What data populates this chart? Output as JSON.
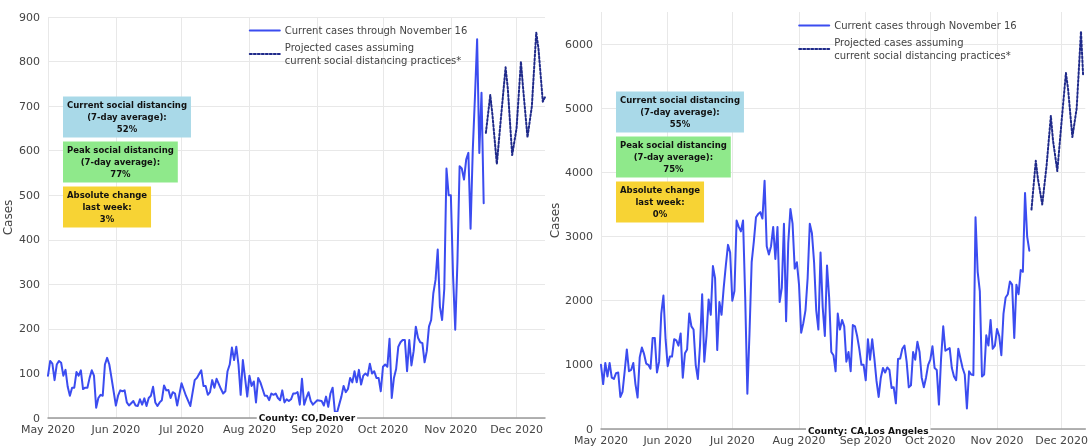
{
  "chart_data": [
    {
      "type": "line",
      "ylabel": "Cases",
      "xlim": [
        "2020-05-01",
        "2020-12-14"
      ],
      "ylim": [
        0,
        900
      ],
      "yticks": [
        0,
        100,
        200,
        300,
        400,
        500,
        600,
        700,
        800,
        900
      ],
      "xticks": [
        {
          "value": "2020-05-01",
          "label": "May 2020"
        },
        {
          "value": "2020-06-01",
          "label": "Jun 2020"
        },
        {
          "value": "2020-07-01",
          "label": "Jul 2020"
        },
        {
          "value": "2020-08-01",
          "label": "Aug 2020"
        },
        {
          "value": "2020-09-01",
          "label": "Sep 2020"
        },
        {
          "value": "2020-10-01",
          "label": "Oct 2020"
        },
        {
          "value": "2020-11-01",
          "label": "Nov 2020"
        },
        {
          "value": "2020-12-01",
          "label": "Dec 2020"
        }
      ],
      "grid": true,
      "legend": "top right",
      "annotations": [
        "Current social distancing\n(7-day average):\n52%",
        "Peak social distancing\n(7-day average):\n77%",
        "Absolute change\nlast week:\n3%",
        "County: CO,Denver"
      ],
      "series": [
        {
          "name": "Current cases through November 16",
          "color": "#3b4cf0",
          "line_style": "solid",
          "x": [
            "2020-05-01",
            "2020-05-02",
            "2020-05-03",
            "2020-05-04",
            "2020-05-05",
            "2020-05-06",
            "2020-05-07",
            "2020-05-08",
            "2020-05-09",
            "2020-05-10",
            "2020-05-11",
            "2020-05-12",
            "2020-05-13",
            "2020-05-14",
            "2020-05-15",
            "2020-05-16",
            "2020-05-17",
            "2020-05-18",
            "2020-05-19",
            "2020-05-20",
            "2020-05-21",
            "2020-05-22",
            "2020-05-23",
            "2020-05-24",
            "2020-05-25",
            "2020-05-26",
            "2020-05-27",
            "2020-05-28",
            "2020-05-29",
            "2020-05-30",
            "2020-06-01",
            "2020-06-02",
            "2020-06-03",
            "2020-06-04",
            "2020-06-05",
            "2020-06-06",
            "2020-06-07",
            "2020-06-08",
            "2020-06-09",
            "2020-06-10",
            "2020-06-11",
            "2020-06-12",
            "2020-06-13",
            "2020-06-14",
            "2020-06-15",
            "2020-06-16",
            "2020-06-17",
            "2020-06-18",
            "2020-06-19",
            "2020-06-20",
            "2020-06-21",
            "2020-06-22",
            "2020-06-23",
            "2020-06-24",
            "2020-06-25",
            "2020-06-26",
            "2020-06-27",
            "2020-06-28",
            "2020-06-29",
            "2020-07-01",
            "2020-07-03",
            "2020-07-05",
            "2020-07-07",
            "2020-07-08",
            "2020-07-10",
            "2020-07-11",
            "2020-07-12",
            "2020-07-13",
            "2020-07-14",
            "2020-07-15",
            "2020-07-16",
            "2020-07-17",
            "2020-07-19",
            "2020-07-20",
            "2020-07-21",
            "2020-07-22",
            "2020-07-23",
            "2020-07-24",
            "2020-07-25",
            "2020-07-26",
            "2020-07-27",
            "2020-07-28",
            "2020-07-29",
            "2020-07-30",
            "2020-07-31",
            "2020-08-01",
            "2020-08-02",
            "2020-08-03",
            "2020-08-04",
            "2020-08-05",
            "2020-08-06",
            "2020-08-07",
            "2020-08-08",
            "2020-08-09",
            "2020-08-10",
            "2020-08-11",
            "2020-08-12",
            "2020-08-13",
            "2020-08-14",
            "2020-08-15",
            "2020-08-16",
            "2020-08-17",
            "2020-08-18",
            "2020-08-19",
            "2020-08-20",
            "2020-08-21",
            "2020-08-22",
            "2020-08-23",
            "2020-08-24",
            "2020-08-25",
            "2020-08-26",
            "2020-08-27",
            "2020-08-28",
            "2020-08-29",
            "2020-08-30",
            "2020-09-01",
            "2020-09-03",
            "2020-09-04",
            "2020-09-05",
            "2020-09-06",
            "2020-09-07",
            "2020-09-08",
            "2020-09-09",
            "2020-09-10",
            "2020-09-11",
            "2020-09-12",
            "2020-09-13",
            "2020-09-14",
            "2020-09-15",
            "2020-09-16",
            "2020-09-17",
            "2020-09-18",
            "2020-09-19",
            "2020-09-20",
            "2020-09-21",
            "2020-09-22",
            "2020-09-23",
            "2020-09-24",
            "2020-09-25",
            "2020-09-26",
            "2020-09-27",
            "2020-09-28",
            "2020-09-29",
            "2020-09-30",
            "2020-10-01",
            "2020-10-02",
            "2020-10-03",
            "2020-10-04",
            "2020-10-05",
            "2020-10-06",
            "2020-10-07",
            "2020-10-08",
            "2020-10-09",
            "2020-10-10",
            "2020-10-11",
            "2020-10-12",
            "2020-10-13",
            "2020-10-14",
            "2020-10-15",
            "2020-10-16",
            "2020-10-17",
            "2020-10-18",
            "2020-10-19",
            "2020-10-20",
            "2020-10-21",
            "2020-10-22",
            "2020-10-23",
            "2020-10-24",
            "2020-10-25",
            "2020-10-26",
            "2020-10-27",
            "2020-10-28",
            "2020-10-29",
            "2020-10-30",
            "2020-10-31",
            "2020-11-01",
            "2020-11-02",
            "2020-11-03",
            "2020-11-04",
            "2020-11-05",
            "2020-11-06",
            "2020-11-07",
            "2020-11-08",
            "2020-11-09",
            "2020-11-10",
            "2020-11-11",
            "2020-11-12",
            "2020-11-13",
            "2020-11-14",
            "2020-11-15",
            "2020-11-16"
          ],
          "values": [
            95,
            128,
            122,
            85,
            120,
            128,
            124,
            95,
            108,
            70,
            50,
            68,
            68,
            103,
            95,
            107,
            65,
            68,
            68,
            90,
            107,
            95,
            23,
            45,
            52,
            50,
            120,
            135,
            120,
            90,
            28,
            50,
            62,
            60,
            62,
            35,
            28,
            33,
            38,
            28,
            27,
            42,
            30,
            44,
            27,
            45,
            50,
            70,
            35,
            27,
            35,
            40,
            73,
            62,
            63,
            45,
            58,
            55,
            28,
            78,
            50,
            27,
            85,
            90,
            107,
            72,
            72,
            52,
            58,
            85,
            68,
            88,
            65,
            55,
            60,
            105,
            120,
            158,
            130,
            160,
            120,
            52,
            130,
            90,
            48,
            95,
            72,
            82,
            35,
            90,
            80,
            65,
            50,
            50,
            40,
            55,
            52,
            55,
            45,
            40,
            62,
            35,
            42,
            38,
            42,
            55,
            55,
            58,
            30,
            88,
            30,
            45,
            58,
            38,
            30,
            40,
            38,
            28,
            48,
            25,
            55,
            68,
            15,
            12,
            30,
            48,
            72,
            58,
            65,
            90,
            80,
            105,
            80,
            108,
            75,
            95,
            100,
            95,
            122,
            100,
            105,
            90,
            90,
            60,
            115,
            120,
            115,
            178,
            45,
            90,
            110,
            160,
            170,
            175,
            175,
            105,
            175,
            118,
            150,
            205,
            180,
            170,
            168,
            125,
            150,
            205,
            220,
            280,
            310,
            378,
            250,
            220,
            290,
            560,
            500,
            500,
            320,
            198,
            350,
            565,
            560,
            535,
            580,
            595,
            425,
            600,
            720,
            850,
            595,
            730,
            482
          ]
        },
        {
          "name": "Projected cases assuming\ncurrent social distancing practices*",
          "color": "#1f2a8a",
          "line_style": "dotted",
          "x": [
            "2020-11-17",
            "2020-11-19",
            "2020-11-20",
            "2020-11-22",
            "2020-11-24",
            "2020-11-26",
            "2020-11-27",
            "2020-11-29",
            "2020-12-01",
            "2020-12-03",
            "2020-12-04",
            "2020-12-06",
            "2020-12-08",
            "2020-12-10",
            "2020-12-11",
            "2020-12-13",
            "2020-12-14"
          ],
          "values": [
            640,
            725,
            680,
            570,
            680,
            787,
            740,
            590,
            650,
            800,
            740,
            630,
            700,
            865,
            830,
            710,
            720
          ]
        }
      ]
    },
    {
      "type": "line",
      "ylabel": "Cases",
      "xlim": [
        "2020-05-01",
        "2020-12-12"
      ],
      "ylim": [
        0,
        6500
      ],
      "yticks": [
        0,
        1000,
        2000,
        3000,
        4000,
        5000,
        6000
      ],
      "xticks": [
        {
          "value": "2020-05-01",
          "label": "May 2020"
        },
        {
          "value": "2020-06-01",
          "label": "Jun 2020"
        },
        {
          "value": "2020-07-01",
          "label": "Jul 2020"
        },
        {
          "value": "2020-08-01",
          "label": "Aug 2020"
        },
        {
          "value": "2020-09-01",
          "label": "Sep 2020"
        },
        {
          "value": "2020-10-01",
          "label": "Oct 2020"
        },
        {
          "value": "2020-11-01",
          "label": "Nov 2020"
        },
        {
          "value": "2020-12-01",
          "label": "Dec 2020"
        }
      ],
      "grid": true,
      "legend": "top right",
      "annotations": [
        "Current social distancing\n(7-day average):\n55%",
        "Peak social distancing\n(7-day average):\n75%",
        "Absolute change\nlast week:\n0%",
        "County: CA,Los Angeles"
      ],
      "series": [
        {
          "name": "Current cases through November 16",
          "color": "#3b4cf0",
          "line_style": "solid",
          "x": [
            "2020-05-01",
            "2020-05-02",
            "2020-05-03",
            "2020-05-04",
            "2020-05-05",
            "2020-05-06",
            "2020-05-07",
            "2020-05-08",
            "2020-05-09",
            "2020-05-10",
            "2020-05-11",
            "2020-05-12",
            "2020-05-13",
            "2020-05-14",
            "2020-05-15",
            "2020-05-16",
            "2020-05-17",
            "2020-05-18",
            "2020-05-19",
            "2020-05-20",
            "2020-05-21",
            "2020-05-22",
            "2020-05-23",
            "2020-05-24",
            "2020-05-25",
            "2020-05-26",
            "2020-05-27",
            "2020-05-28",
            "2020-05-29",
            "2020-05-30",
            "2020-05-31",
            "2020-06-01",
            "2020-06-02",
            "2020-06-03",
            "2020-06-04",
            "2020-06-05",
            "2020-06-06",
            "2020-06-07",
            "2020-06-08",
            "2020-06-09",
            "2020-06-10",
            "2020-06-11",
            "2020-06-12",
            "2020-06-13",
            "2020-06-14",
            "2020-06-15",
            "2020-06-16",
            "2020-06-17",
            "2020-06-18",
            "2020-06-19",
            "2020-06-20",
            "2020-06-21",
            "2020-06-22",
            "2020-06-23",
            "2020-06-24",
            "2020-06-25",
            "2020-06-26",
            "2020-06-27",
            "2020-06-28",
            "2020-06-29",
            "2020-06-30",
            "2020-07-01",
            "2020-07-02",
            "2020-07-03",
            "2020-07-04",
            "2020-07-05",
            "2020-07-06",
            "2020-07-07",
            "2020-07-08",
            "2020-07-09",
            "2020-07-10",
            "2020-07-11",
            "2020-07-12",
            "2020-07-13",
            "2020-07-14",
            "2020-07-15",
            "2020-07-16",
            "2020-07-17",
            "2020-07-18",
            "2020-07-19",
            "2020-07-20",
            "2020-07-21",
            "2020-07-22",
            "2020-07-23",
            "2020-07-24",
            "2020-07-25",
            "2020-07-26",
            "2020-07-27",
            "2020-07-28",
            "2020-07-29",
            "2020-07-30",
            "2020-07-31",
            "2020-08-01",
            "2020-08-02",
            "2020-08-03",
            "2020-08-04",
            "2020-08-05",
            "2020-08-06",
            "2020-08-07",
            "2020-08-08",
            "2020-08-09",
            "2020-08-10",
            "2020-08-11",
            "2020-08-12",
            "2020-08-13",
            "2020-08-14",
            "2020-08-15",
            "2020-08-16",
            "2020-08-17",
            "2020-08-18",
            "2020-08-19",
            "2020-08-20",
            "2020-08-21",
            "2020-08-22",
            "2020-08-23",
            "2020-08-24",
            "2020-08-25",
            "2020-08-26",
            "2020-08-27",
            "2020-08-28",
            "2020-08-29",
            "2020-08-30",
            "2020-08-31",
            "2020-09-01",
            "2020-09-02",
            "2020-09-03",
            "2020-09-04",
            "2020-09-05",
            "2020-09-06",
            "2020-09-07",
            "2020-09-08",
            "2020-09-09",
            "2020-09-10",
            "2020-09-11",
            "2020-09-12",
            "2020-09-13",
            "2020-09-14",
            "2020-09-15",
            "2020-09-16",
            "2020-09-17",
            "2020-09-18",
            "2020-09-19",
            "2020-09-20",
            "2020-09-21",
            "2020-09-22",
            "2020-09-23",
            "2020-09-24",
            "2020-09-25",
            "2020-09-26",
            "2020-09-27",
            "2020-09-28",
            "2020-09-29",
            "2020-09-30",
            "2020-10-01",
            "2020-10-02",
            "2020-10-03",
            "2020-10-04",
            "2020-10-05",
            "2020-10-06",
            "2020-10-07",
            "2020-10-08",
            "2020-10-09",
            "2020-10-10",
            "2020-10-11",
            "2020-10-12",
            "2020-10-13",
            "2020-10-14",
            "2020-10-15",
            "2020-10-16",
            "2020-10-17",
            "2020-10-18",
            "2020-10-19",
            "2020-10-20",
            "2020-10-21",
            "2020-10-22",
            "2020-10-23",
            "2020-10-24",
            "2020-10-25",
            "2020-10-26",
            "2020-10-27",
            "2020-10-28",
            "2020-10-29",
            "2020-10-30",
            "2020-10-31",
            "2020-11-01",
            "2020-11-02",
            "2020-11-03",
            "2020-11-04",
            "2020-11-05",
            "2020-11-06",
            "2020-11-07",
            "2020-11-08",
            "2020-11-09",
            "2020-11-10",
            "2020-11-11",
            "2020-11-12",
            "2020-11-13",
            "2020-11-14",
            "2020-11-15",
            "2020-11-16"
          ],
          "values": [
            1000,
            700,
            1030,
            820,
            1030,
            800,
            780,
            870,
            880,
            500,
            580,
            900,
            1240,
            900,
            920,
            1030,
            700,
            490,
            1120,
            1270,
            1170,
            1020,
            1000,
            940,
            1420,
            1420,
            880,
            1050,
            1800,
            2080,
            1400,
            980,
            1130,
            1130,
            1400,
            1380,
            1300,
            1490,
            800,
            1180,
            1240,
            1800,
            1600,
            1550,
            1000,
            780,
            1300,
            2100,
            1050,
            1450,
            2020,
            1780,
            2540,
            2350,
            1230,
            1980,
            1780,
            2200,
            2550,
            2870,
            2750,
            2000,
            2150,
            3250,
            3150,
            3080,
            3250,
            2050,
            550,
            1500,
            2600,
            2920,
            3300,
            3350,
            3380,
            3280,
            3870,
            2850,
            2720,
            2850,
            3150,
            2650,
            3150,
            1980,
            2200,
            3200,
            1680,
            2900,
            3430,
            3200,
            2500,
            2600,
            2250,
            1500,
            1650,
            1850,
            2350,
            3200,
            3050,
            2600,
            1850,
            1550,
            2750,
            1900,
            1450,
            2550,
            2050,
            1200,
            1150,
            900,
            1800,
            1550,
            1700,
            1600,
            1050,
            1200,
            900,
            1620,
            1600,
            1450,
            1250,
            1000,
            1000,
            760,
            1400,
            1080,
            1400,
            1100,
            750,
            500,
            800,
            950,
            880,
            960,
            920,
            640,
            650,
            400,
            1090,
            1100,
            1250,
            1300,
            1050,
            650,
            680,
            1200,
            1080,
            1360,
            1200,
            800,
            650,
            800,
            1000,
            1080,
            1290,
            950,
            920,
            380,
            1100,
            1600,
            1220,
            1240,
            1260,
            950,
            820,
            760,
            1250,
            1100,
            950,
            850,
            320,
            900,
            850,
            840,
            3300,
            2450,
            2150,
            820,
            850,
            1460,
            1300,
            1700,
            1250,
            1300,
            1560,
            1450,
            1150,
            1800,
            2050,
            2100,
            2300,
            2250,
            1420,
            2250,
            2100,
            2480,
            2450,
            3680,
            3000,
            2780
          ]
        },
        {
          "name": "Projected cases assuming\ncurrent social distancing practices*",
          "color": "#1f2a8a",
          "line_style": "dotted",
          "x": [
            "2020-11-17",
            "2020-11-19",
            "2020-11-20",
            "2020-11-22",
            "2020-11-24",
            "2020-11-26",
            "2020-11-27",
            "2020-11-29",
            "2020-12-01",
            "2020-12-03",
            "2020-12-04",
            "2020-12-06",
            "2020-12-08",
            "2020-12-10",
            "2020-12-11"
          ],
          "values": [
            3420,
            4180,
            3900,
            3500,
            4100,
            4880,
            4500,
            4020,
            4800,
            5550,
            5300,
            4550,
            5000,
            6200,
            5500
          ]
        }
      ]
    }
  ]
}
